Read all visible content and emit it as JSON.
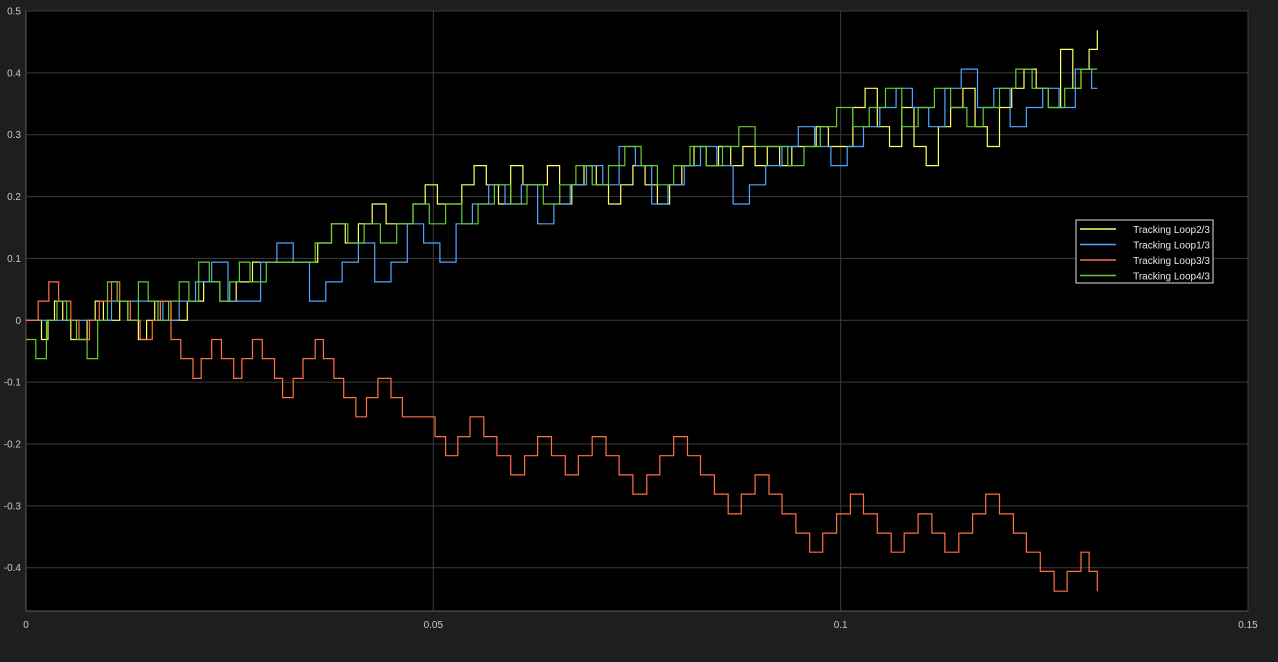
{
  "chart_data": {
    "type": "line",
    "step": true,
    "background": "#000000",
    "figure_background": "#1e1e1e",
    "grid": true,
    "grid_color": "#3c3c3c",
    "tick_label_color": "#c8c8c8",
    "xlim": [
      0,
      0.15
    ],
    "ylim": [
      -0.47,
      0.5
    ],
    "x_ticks": [
      0,
      0.05,
      0.1,
      0.15
    ],
    "x_tick_labels": [
      "0",
      "0.05",
      "0.1",
      "0.15"
    ],
    "y_ticks": [
      0.5,
      0.4,
      0.3,
      0.2,
      0.1,
      0,
      -0.1,
      -0.2,
      -0.3,
      -0.4
    ],
    "y_tick_labels": [
      "0.5",
      "0.4",
      "0.3",
      "0.2",
      "0.1",
      "0",
      "-0.1",
      "-0.2",
      "-0.3",
      "-0.4"
    ],
    "legend_position": "right",
    "series": [
      {
        "name": "Tracking Loop2/3",
        "color": "#ffff66",
        "x": [
          0,
          0.0019,
          0.0027,
          0.0035,
          0.0045,
          0.0055,
          0.0075,
          0.0085,
          0.0095,
          0.0115,
          0.0125,
          0.0138,
          0.0148,
          0.0158,
          0.0178,
          0.0198,
          0.0218,
          0.0238,
          0.0258,
          0.0278,
          0.0298,
          0.0318,
          0.0338,
          0.0358,
          0.0375,
          0.0392,
          0.0408,
          0.0425,
          0.0442,
          0.0458,
          0.0475,
          0.049,
          0.0505,
          0.052,
          0.0535,
          0.055,
          0.0565,
          0.058,
          0.0595,
          0.061,
          0.0625,
          0.064,
          0.0655,
          0.067,
          0.0685,
          0.07,
          0.0715,
          0.073,
          0.0745,
          0.076,
          0.0775,
          0.079,
          0.0805,
          0.082,
          0.0835,
          0.085,
          0.0865,
          0.088,
          0.0895,
          0.091,
          0.0925,
          0.094,
          0.0955,
          0.097,
          0.0985,
          0.1,
          0.1015,
          0.103,
          0.1045,
          0.106,
          0.1075,
          0.109,
          0.1105,
          0.112,
          0.1135,
          0.115,
          0.1165,
          0.118,
          0.1195,
          0.121,
          0.1225,
          0.124,
          0.1255,
          0.127,
          0.1285,
          0.1295,
          0.1305,
          0.1315
        ],
        "y": [
          0,
          -0.031,
          0,
          0.031,
          0,
          -0.031,
          0,
          0.031,
          0,
          0.031,
          0,
          -0.031,
          0,
          0.031,
          0,
          0.031,
          0.062,
          0.031,
          0.062,
          0.094,
          0.094,
          0.094,
          0.094,
          0.125,
          0.156,
          0.125,
          0.156,
          0.188,
          0.156,
          0.156,
          0.188,
          0.219,
          0.188,
          0.188,
          0.219,
          0.25,
          0.219,
          0.188,
          0.25,
          0.219,
          0.219,
          0.25,
          0.188,
          0.219,
          0.25,
          0.219,
          0.188,
          0.219,
          0.25,
          0.219,
          0.188,
          0.219,
          0.25,
          0.281,
          0.25,
          0.281,
          0.25,
          0.281,
          0.25,
          0.281,
          0.25,
          0.281,
          0.281,
          0.313,
          0.281,
          0.281,
          0.344,
          0.375,
          0.313,
          0.281,
          0.344,
          0.281,
          0.25,
          0.313,
          0.344,
          0.375,
          0.313,
          0.281,
          0.344,
          0.375,
          0.406,
          0.375,
          0.344,
          0.438,
          0.375,
          0.406,
          0.438,
          0.469
        ]
      },
      {
        "name": "Tracking Loop1/3",
        "color": "#4da6ff",
        "x": [
          0,
          0.0105,
          0.0118,
          0.0128,
          0.0148,
          0.0168,
          0.0188,
          0.0208,
          0.0228,
          0.0248,
          0.0268,
          0.0288,
          0.0308,
          0.0328,
          0.0348,
          0.0368,
          0.0388,
          0.0408,
          0.0428,
          0.0448,
          0.0468,
          0.0488,
          0.0508,
          0.0528,
          0.0548,
          0.0568,
          0.0588,
          0.0608,
          0.0628,
          0.0648,
          0.0668,
          0.0688,
          0.0708,
          0.0728,
          0.0748,
          0.0768,
          0.0788,
          0.0808,
          0.0828,
          0.0848,
          0.0868,
          0.0888,
          0.0908,
          0.0928,
          0.0948,
          0.0968,
          0.0988,
          0.1008,
          0.1028,
          0.1048,
          0.1068,
          0.1088,
          0.1108,
          0.1128,
          0.1148,
          0.1168,
          0.1188,
          0.1208,
          0.1228,
          0.1248,
          0.1268,
          0.1288,
          0.1308,
          0.1315
        ],
        "y": [
          0,
          0.031,
          0.031,
          0.031,
          0.031,
          0,
          0.031,
          0.062,
          0.094,
          0.031,
          0.031,
          0.094,
          0.125,
          0.094,
          0.031,
          0.062,
          0.094,
          0.125,
          0.062,
          0.094,
          0.156,
          0.125,
          0.094,
          0.156,
          0.188,
          0.219,
          0.188,
          0.219,
          0.156,
          0.188,
          0.219,
          0.25,
          0.219,
          0.281,
          0.25,
          0.188,
          0.219,
          0.25,
          0.281,
          0.25,
          0.188,
          0.219,
          0.25,
          0.281,
          0.313,
          0.281,
          0.25,
          0.281,
          0.313,
          0.344,
          0.375,
          0.344,
          0.313,
          0.375,
          0.406,
          0.344,
          0.375,
          0.313,
          0.344,
          0.375,
          0.344,
          0.406,
          0.375,
          0.375
        ]
      },
      {
        "name": "Tracking Loop3/3",
        "color": "#ff7043",
        "x": [
          0,
          0.0015,
          0.0028,
          0.004,
          0.0055,
          0.0065,
          0.0078,
          0.009,
          0.0105,
          0.0115,
          0.0128,
          0.014,
          0.0155,
          0.0165,
          0.0178,
          0.019,
          0.0205,
          0.0215,
          0.0228,
          0.024,
          0.0255,
          0.0265,
          0.0278,
          0.029,
          0.0305,
          0.0315,
          0.0328,
          0.034,
          0.0355,
          0.0365,
          0.0378,
          0.039,
          0.0405,
          0.0418,
          0.0432,
          0.0448,
          0.0462,
          0.0475,
          0.0488,
          0.0502,
          0.0515,
          0.053,
          0.0545,
          0.0562,
          0.0578,
          0.0595,
          0.0612,
          0.0628,
          0.0645,
          0.0662,
          0.0678,
          0.0695,
          0.0712,
          0.0728,
          0.0745,
          0.0762,
          0.0778,
          0.0795,
          0.0812,
          0.0828,
          0.0845,
          0.0862,
          0.0878,
          0.0895,
          0.0912,
          0.0928,
          0.0945,
          0.0962,
          0.0978,
          0.0995,
          0.1012,
          0.1028,
          0.1045,
          0.1062,
          0.1078,
          0.1095,
          0.1112,
          0.1128,
          0.1145,
          0.1162,
          0.1178,
          0.1195,
          0.1212,
          0.1228,
          0.1245,
          0.1262,
          0.1278,
          0.1295,
          0.1305,
          0.1315
        ],
        "y": [
          0,
          0.031,
          0.062,
          0.031,
          0,
          -0.031,
          0,
          0.031,
          0.062,
          0.031,
          0,
          -0.031,
          0,
          0.031,
          -0.031,
          -0.062,
          -0.094,
          -0.062,
          -0.031,
          -0.062,
          -0.094,
          -0.062,
          -0.031,
          -0.062,
          -0.094,
          -0.125,
          -0.094,
          -0.062,
          -0.031,
          -0.062,
          -0.094,
          -0.125,
          -0.156,
          -0.125,
          -0.094,
          -0.125,
          -0.156,
          -0.156,
          -0.156,
          -0.188,
          -0.219,
          -0.188,
          -0.156,
          -0.188,
          -0.219,
          -0.25,
          -0.219,
          -0.188,
          -0.219,
          -0.25,
          -0.219,
          -0.188,
          -0.219,
          -0.25,
          -0.281,
          -0.25,
          -0.219,
          -0.188,
          -0.219,
          -0.25,
          -0.281,
          -0.313,
          -0.281,
          -0.25,
          -0.281,
          -0.313,
          -0.344,
          -0.375,
          -0.344,
          -0.313,
          -0.281,
          -0.313,
          -0.344,
          -0.375,
          -0.344,
          -0.313,
          -0.344,
          -0.375,
          -0.344,
          -0.313,
          -0.281,
          -0.313,
          -0.344,
          -0.375,
          -0.406,
          -0.438,
          -0.406,
          -0.375,
          -0.406,
          -0.438
        ]
      },
      {
        "name": "Tracking Loop4/3",
        "color": "#66cc33",
        "x": [
          0,
          0.0012,
          0.0025,
          0.0038,
          0.005,
          0.0062,
          0.0075,
          0.0088,
          0.01,
          0.0112,
          0.0125,
          0.0138,
          0.015,
          0.0162,
          0.0175,
          0.0188,
          0.02,
          0.0212,
          0.0225,
          0.0238,
          0.025,
          0.0262,
          0.0275,
          0.0295,
          0.0315,
          0.0335,
          0.0355,
          0.0375,
          0.0395,
          0.0415,
          0.0435,
          0.0455,
          0.0475,
          0.0495,
          0.0515,
          0.0535,
          0.0555,
          0.0575,
          0.0595,
          0.0615,
          0.0635,
          0.0655,
          0.0675,
          0.0695,
          0.0715,
          0.0735,
          0.0755,
          0.0775,
          0.0795,
          0.0815,
          0.0835,
          0.0855,
          0.0875,
          0.0895,
          0.0915,
          0.0935,
          0.0955,
          0.0975,
          0.0995,
          0.1015,
          0.1035,
          0.1055,
          0.1075,
          0.1095,
          0.1115,
          0.1135,
          0.1155,
          0.1175,
          0.1195,
          0.1215,
          0.1235,
          0.1255,
          0.1275,
          0.1295,
          0.1315
        ],
        "y": [
          -0.031,
          -0.062,
          0,
          0.031,
          0,
          -0.031,
          -0.062,
          0,
          0.062,
          0.031,
          0,
          0.062,
          0.031,
          0,
          0.031,
          0.062,
          0.031,
          0.094,
          0.062,
          0.031,
          0.062,
          0.094,
          0.062,
          0.094,
          0.094,
          0.094,
          0.125,
          0.156,
          0.125,
          0.156,
          0.125,
          0.156,
          0.188,
          0.156,
          0.188,
          0.156,
          0.188,
          0.219,
          0.188,
          0.219,
          0.188,
          0.219,
          0.25,
          0.219,
          0.25,
          0.281,
          0.25,
          0.219,
          0.25,
          0.281,
          0.25,
          0.281,
          0.313,
          0.281,
          0.281,
          0.25,
          0.281,
          0.313,
          0.344,
          0.313,
          0.344,
          0.375,
          0.313,
          0.344,
          0.375,
          0.344,
          0.313,
          0.344,
          0.375,
          0.406,
          0.375,
          0.344,
          0.375,
          0.406,
          0.406
        ]
      }
    ]
  }
}
